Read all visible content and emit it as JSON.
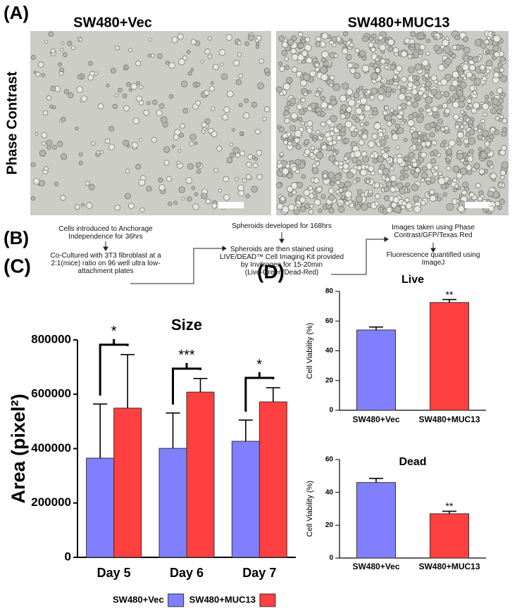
{
  "panel_a": {
    "label": "(A)",
    "left_title": "SW480+Vec",
    "right_title": "SW480+MUC13",
    "row_label": "Phase Contrast"
  },
  "panel_b": {
    "label": "(B)",
    "step1": [
      "Cells introduced to Anchorage",
      "Independence for 36hrs"
    ],
    "step2": [
      "Co-Cultured with 3T3 fibroblast at a",
      "2:1(mice) ratio on 96 well ultra low-",
      "attachment  plates"
    ],
    "step3": [
      "Spheroids developed for 168hrs"
    ],
    "step4": [
      "Spheroids are then stained using",
      "LIVE/DEAD™ Cell Imaging Kit provided",
      "by Invitrogen for 15-20min",
      "(Live-Green/Dead-Red)"
    ],
    "step5": [
      "Images taken using Phase",
      "Contrast/GFP/Texas Red"
    ],
    "step6": [
      "Fluorescence quantified using",
      "ImageJ"
    ]
  },
  "panel_c": {
    "label": "(C)"
  },
  "panel_d": {
    "label": "(D)"
  },
  "chart_data": [
    {
      "type": "bar",
      "title": "Size",
      "y_label": "Area (pixel²)",
      "categories": [
        "Day 5",
        "Day 6",
        "Day 7"
      ],
      "series": [
        {
          "name": "SW480+Vec",
          "color": "#8080ff",
          "values": [
            365000,
            401000,
            427000
          ],
          "errors": [
            199000,
            130000,
            78000
          ]
        },
        {
          "name": "SW480+MUC13",
          "color": "#ff4040",
          "values": [
            549000,
            608000,
            572000
          ],
          "errors": [
            197000,
            50000,
            52000
          ]
        }
      ],
      "significance": [
        "*",
        "***",
        "*"
      ],
      "ylim": [
        0,
        800000
      ],
      "yticks": [
        0,
        200000,
        400000,
        600000,
        800000
      ]
    },
    {
      "type": "bar",
      "title": "Live",
      "y_label": "Cell Viability (%)",
      "categories": [
        "SW480+Vec",
        "SW480+MUC13"
      ],
      "values": [
        54,
        72.5
      ],
      "errors": [
        2,
        2
      ],
      "colors": [
        "#8080ff",
        "#ff4040"
      ],
      "significance": [
        null,
        "**"
      ],
      "ylim": [
        0,
        80
      ],
      "yticks": [
        0,
        20,
        40,
        60,
        80
      ]
    },
    {
      "type": "bar",
      "title": "Dead",
      "y_label": "Cell Viability (%)",
      "categories": [
        "SW480+Vec",
        "SW480+MUC13"
      ],
      "values": [
        46,
        27
      ],
      "errors": [
        2.5,
        1.5
      ],
      "colors": [
        "#8080ff",
        "#ff4040"
      ],
      "significance": [
        null,
        "**"
      ],
      "ylim": [
        0,
        60
      ],
      "yticks": [
        0,
        20,
        40,
        60
      ]
    }
  ]
}
